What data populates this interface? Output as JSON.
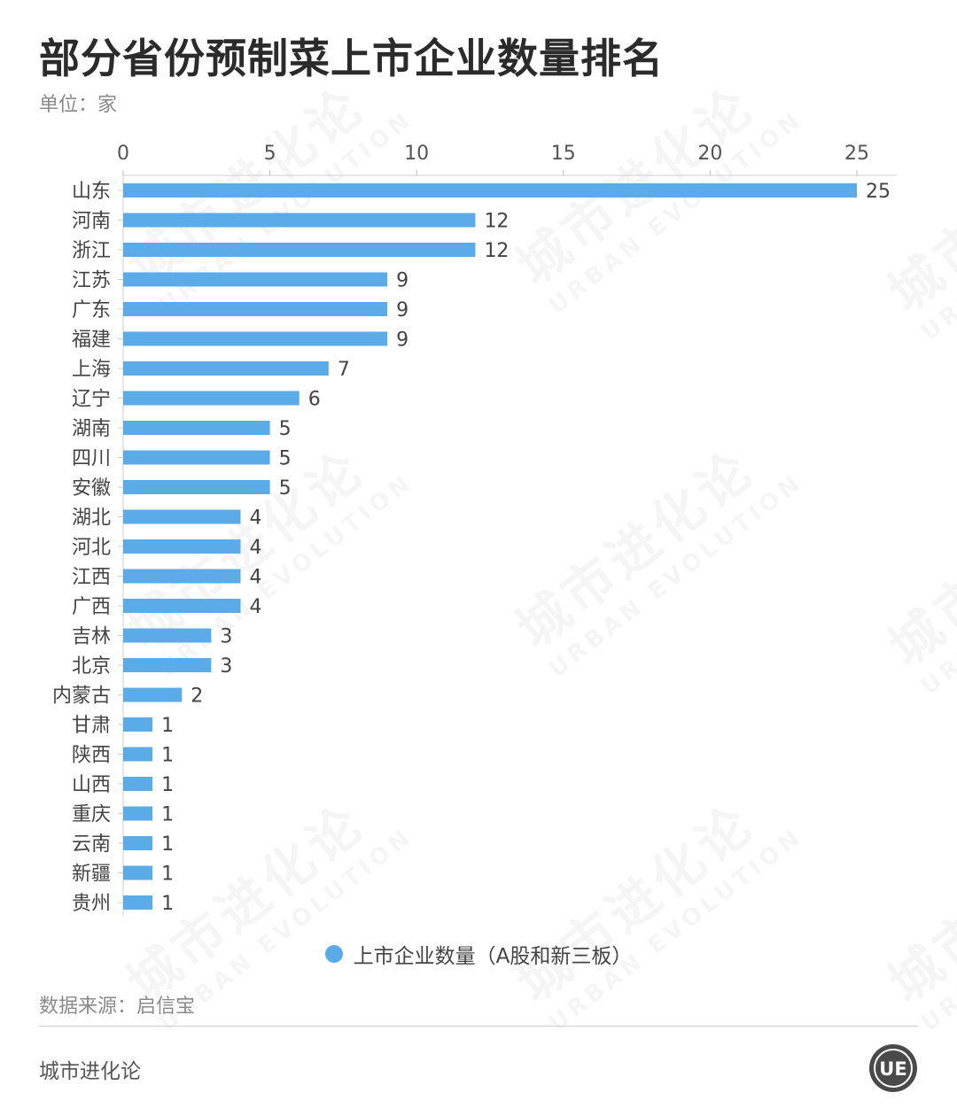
{
  "header": {
    "title": "部分省份预制菜上市企业数量排名",
    "unit": "单位：家"
  },
  "legend": {
    "label": "上市企业数量（A股和新三板）",
    "color": "#5aabe8"
  },
  "footer": {
    "source": "数据来源：启信宝",
    "brand": "城市进化论",
    "logo_text": "UE"
  },
  "watermark": {
    "cn": "城市进化论",
    "en": "URBAN EVOLUTION"
  },
  "chart_data": {
    "type": "bar",
    "orientation": "horizontal",
    "categories": [
      "山东",
      "河南",
      "浙江",
      "江苏",
      "广东",
      "福建",
      "上海",
      "辽宁",
      "湖南",
      "四川",
      "安徽",
      "湖北",
      "河北",
      "江西",
      "广西",
      "吉林",
      "北京",
      "内蒙古",
      "甘肃",
      "陕西",
      "山西",
      "重庆",
      "云南",
      "新疆",
      "贵州"
    ],
    "series": [
      {
        "name": "上市企业数量（A股和新三板）",
        "values": [
          25,
          12,
          12,
          9,
          9,
          9,
          7,
          6,
          5,
          5,
          5,
          4,
          4,
          4,
          4,
          3,
          3,
          2,
          1,
          1,
          1,
          1,
          1,
          1,
          1
        ]
      }
    ],
    "xlim": [
      0,
      26
    ],
    "xticks": [
      0,
      5,
      10,
      15,
      20,
      25
    ],
    "axis_position": "top",
    "data_labels": true,
    "legend_position": "bottom-center",
    "bar_color": "#5aabe8",
    "grid": false
  }
}
